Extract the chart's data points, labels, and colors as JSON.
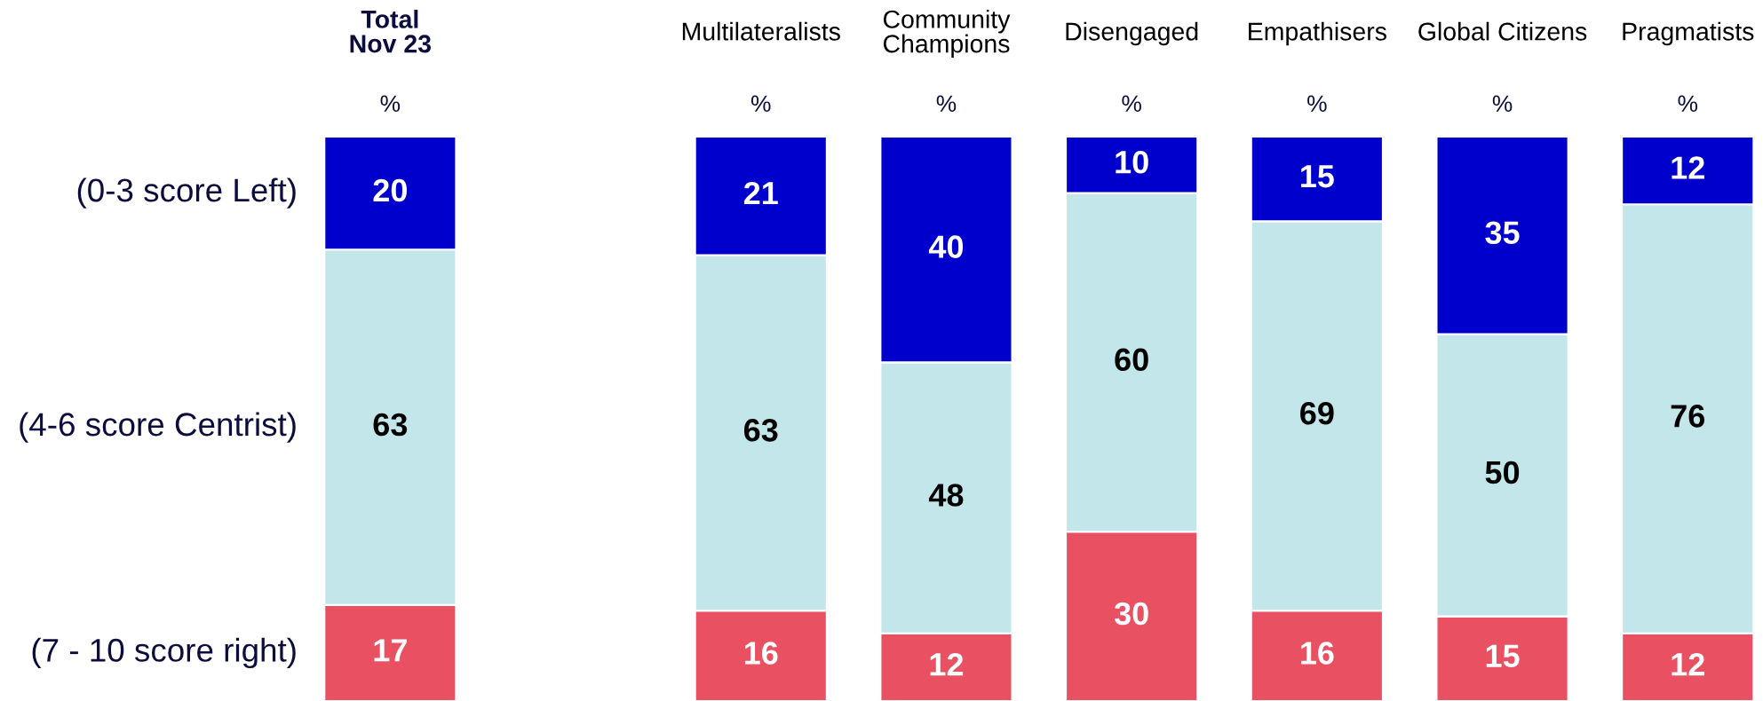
{
  "chart_data": {
    "type": "bar",
    "stacked": true,
    "data_labels": true,
    "categories": [
      "Total\nNov 23",
      null,
      "Multilateralists",
      "Community\nChampions",
      "Disengaged",
      "Empathisers",
      "Global Citizens",
      "Pragmatists"
    ],
    "series": [
      {
        "name": "(7 - 10 score right)",
        "color": "#e95163",
        "values": [
          17,
          null,
          16,
          12,
          30,
          16,
          15,
          12
        ]
      },
      {
        "name": "(4-6 score Centrist)",
        "color": "#c3e6ea",
        "values": [
          63,
          null,
          63,
          48,
          60,
          69,
          50,
          76
        ]
      },
      {
        "name": "(0-3 score Left)",
        "color": "#0000cc",
        "values": [
          20,
          null,
          21,
          40,
          10,
          15,
          35,
          12
        ]
      }
    ],
    "annotations": [
      "%",
      "%",
      "%",
      "%",
      "%",
      "%",
      "%"
    ]
  }
}
